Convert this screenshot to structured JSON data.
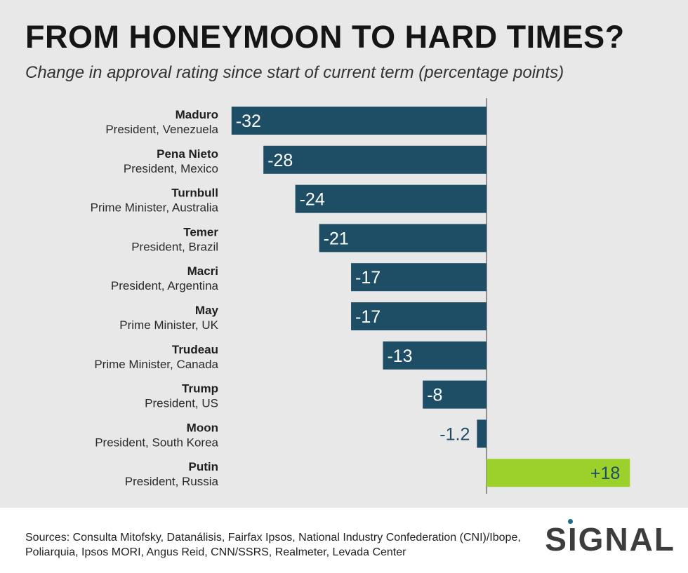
{
  "title": "FROM HONEYMOON TO HARD TIMES?",
  "subtitle": "Change in approval rating since start of current term (percentage points)",
  "colors": {
    "negative": "#1d4e66",
    "positive": "#9bd12a",
    "negative_label_outside": "#1d4e66",
    "positive_label": "#1d4e66",
    "axis": "#555555"
  },
  "chart_data": {
    "type": "bar",
    "orientation": "horizontal",
    "title": "FROM HONEYMOON TO HARD TIMES?",
    "subtitle": "Change in approval rating since start of current term (percentage points)",
    "categories": [
      "Maduro",
      "Pena Nieto",
      "Turnbull",
      "Temer",
      "Macri",
      "May",
      "Trudeau",
      "Trump",
      "Moon",
      "Putin"
    ],
    "category_subtitles": [
      "President, Venezuela",
      "President, Mexico",
      "Prime Minister, Australia",
      "President, Brazil",
      "President, Argentina",
      "Prime Minister, UK",
      "Prime Minister, Canada",
      "President, US",
      "President, South Korea",
      "President, Russia"
    ],
    "values": [
      -32,
      -28,
      -24,
      -21,
      -17,
      -17,
      -13,
      -8,
      -1.2,
      18
    ],
    "value_labels": [
      "-32",
      "-28",
      "-24",
      "-21",
      "-17",
      "-17",
      "-13",
      "-8",
      "-1.2",
      "+18"
    ],
    "xlim": [
      -33,
      20
    ],
    "grid": false,
    "legend": "none"
  },
  "footer": {
    "sources": "Sources: Consulta Mitofsky, Datanálisis, Fairfax Ipsos, National Industry Confederation (CNI)/Ibope, Poliarquia, Ipsos MORI, Angus Reid, CNN/SSRS, Realmeter, Levada Center",
    "logo": "SIGNAL"
  }
}
